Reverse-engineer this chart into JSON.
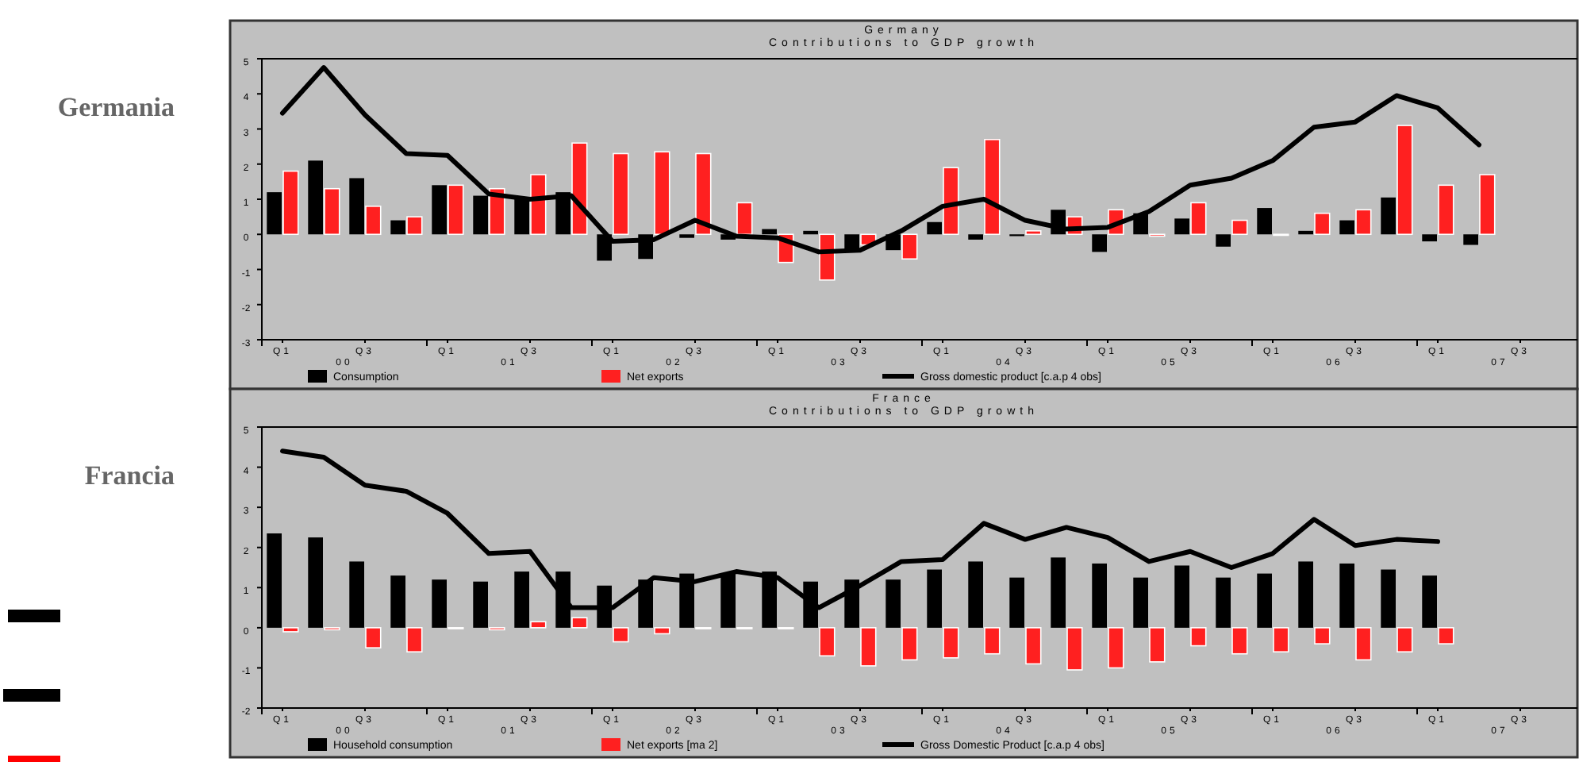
{
  "chart_data": [
    {
      "type": "bar",
      "title": "Germany",
      "subtitle": "Contributions to GDP growth",
      "categories": [
        "Q1",
        null,
        "Q3",
        null,
        "Q1",
        null,
        "Q3",
        null,
        "Q1",
        null,
        "Q3",
        null,
        "Q1",
        null,
        "Q3",
        null,
        "Q1",
        null,
        "Q3",
        null,
        "Q1",
        null,
        "Q3",
        null,
        "Q1",
        null,
        "Q3",
        null,
        "Q1",
        null,
        "Q3",
        null
      ],
      "annotations": [
        "00",
        "01",
        "02",
        "03",
        "04",
        "05",
        "06",
        "07",
        "Germania"
      ],
      "ylim": [
        -3,
        5
      ],
      "yticks": [
        -3,
        -2,
        -1,
        0,
        1,
        2,
        3,
        4,
        5
      ],
      "legend": "bottom",
      "series": [
        {
          "name": "Consumption",
          "color": "#000000",
          "values": [
            1.2,
            2.1,
            1.6,
            0.4,
            1.4,
            1.1,
            1.0,
            1.2,
            -0.75,
            -0.7,
            -0.1,
            -0.15,
            0.15,
            0.1,
            -0.45,
            -0.45,
            0.35,
            -0.15,
            -0.05,
            0.7,
            -0.5,
            0.6,
            0.45,
            -0.35,
            0.75,
            0.1,
            0.4,
            1.05,
            -0.2,
            -0.3,
            null,
            null
          ]
        },
        {
          "name": "Net exports",
          "color": "#ff2020",
          "values": [
            1.8,
            1.3,
            0.8,
            0.5,
            1.4,
            1.3,
            1.7,
            2.6,
            2.3,
            2.35,
            2.3,
            0.9,
            -0.8,
            -1.3,
            -0.3,
            -0.7,
            1.9,
            2.7,
            0.1,
            0.5,
            0.7,
            -0.05,
            0.9,
            0.4,
            0,
            0.6,
            0.7,
            3.1,
            1.4,
            1.7,
            null,
            null
          ]
        },
        {
          "name": "Gross domestic product [c.a.p 4 obs]",
          "type": "line",
          "color": "#000000",
          "values": [
            3.45,
            4.75,
            3.4,
            2.3,
            2.25,
            1.15,
            1.0,
            1.1,
            -0.2,
            -0.15,
            0.4,
            -0.05,
            -0.1,
            -0.5,
            -0.45,
            0.1,
            0.8,
            1.0,
            0.4,
            0.15,
            0.2,
            0.65,
            1.4,
            1.6,
            2.1,
            3.05,
            3.2,
            3.95,
            3.6,
            2.55,
            null,
            null
          ]
        }
      ]
    },
    {
      "type": "bar",
      "title": "France",
      "subtitle": "Contributions to GDP growth",
      "categories": [
        "Q1",
        null,
        "Q3",
        null,
        "Q1",
        null,
        "Q3",
        null,
        "Q1",
        null,
        "Q3",
        null,
        "Q1",
        null,
        "Q3",
        null,
        "Q1",
        null,
        "Q3",
        null,
        "Q1",
        null,
        "Q3",
        null,
        "Q1",
        null,
        "Q3",
        null,
        "Q1",
        null,
        "Q3",
        null
      ],
      "annotations": [
        "00",
        "01",
        "02",
        "03",
        "04",
        "05",
        "06",
        "07",
        "Francia"
      ],
      "ylim": [
        -2,
        5
      ],
      "yticks": [
        -2,
        -1,
        0,
        1,
        2,
        3,
        4,
        5
      ],
      "legend": "bottom",
      "series": [
        {
          "name": "Household consumption",
          "color": "#000000",
          "values": [
            2.35,
            2.25,
            1.65,
            1.3,
            1.2,
            1.15,
            1.4,
            1.4,
            1.05,
            1.2,
            1.35,
            1.35,
            1.4,
            1.15,
            1.2,
            1.2,
            1.45,
            1.65,
            1.25,
            1.75,
            1.6,
            1.25,
            1.55,
            1.25,
            1.35,
            1.65,
            1.6,
            1.45,
            1.3,
            null,
            null,
            null
          ]
        },
        {
          "name": "Net exports [ma 2]",
          "color": "#ff2020",
          "values": [
            -0.1,
            -0.05,
            -0.5,
            -0.6,
            0,
            -0.05,
            0.15,
            0.25,
            -0.35,
            -0.15,
            0,
            0,
            0,
            -0.7,
            -0.95,
            -0.8,
            -0.75,
            -0.65,
            -0.9,
            -1.05,
            -1.0,
            -0.85,
            -0.45,
            -0.65,
            -0.6,
            -0.4,
            -0.8,
            -0.6,
            -0.4,
            null,
            null,
            null
          ]
        },
        {
          "name": "Gross Domestic Product [c.a.p 4 obs]",
          "type": "line",
          "color": "#000000",
          "values": [
            4.4,
            4.25,
            3.55,
            3.4,
            2.85,
            1.85,
            1.9,
            0.5,
            0.5,
            1.25,
            1.15,
            1.4,
            1.25,
            0.5,
            1.05,
            1.65,
            1.7,
            2.6,
            2.2,
            2.5,
            2.25,
            1.65,
            1.9,
            1.5,
            1.85,
            2.7,
            2.05,
            2.2,
            2.15,
            null,
            null,
            null
          ]
        }
      ]
    }
  ]
}
